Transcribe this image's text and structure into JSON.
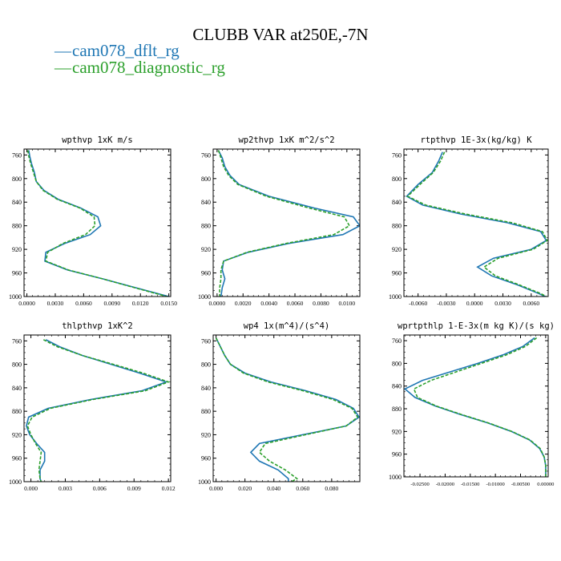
{
  "title": "CLUBB VAR at250E,-7N",
  "legend": {
    "placement": "top-left",
    "items": [
      {
        "marker": "—",
        "label": "cam078_dflt_rg",
        "color": "#1f77b4",
        "dash": "solid"
      },
      {
        "marker": "—",
        "label": "cam078_diagnostic_rg",
        "color": "#2ca02c",
        "dash": "dashed"
      }
    ]
  },
  "chart_data": [
    {
      "type": "line",
      "title": "wpthvp  1xK m/s",
      "xlim": [
        -0.0003,
        0.0152
      ],
      "ylim": [
        1000,
        750
      ],
      "y_inverted": true,
      "xticks": [
        "0.0000",
        "0.0030",
        "0.0060",
        "0.0090",
        "0.0120",
        "0.0150"
      ],
      "yticks": [
        "760",
        "800",
        "840",
        "880",
        "920",
        "960",
        "1000"
      ],
      "y": [
        752,
        762,
        775,
        790,
        805,
        820,
        835,
        850,
        865,
        880,
        895,
        910,
        925,
        940,
        955,
        970,
        985,
        1000
      ],
      "series": [
        {
          "name": "cam078_dflt_rg",
          "x": [
            0.0002,
            0.0003,
            0.0005,
            0.0008,
            0.001,
            0.0018,
            0.0033,
            0.0057,
            0.0075,
            0.0078,
            0.0067,
            0.004,
            0.002,
            0.0019,
            0.0043,
            0.008,
            0.0115,
            0.015
          ]
        },
        {
          "name": "cam078_diagnostic_rg",
          "x": [
            0.0001,
            0.0002,
            0.0004,
            0.0007,
            0.001,
            0.0017,
            0.0032,
            0.0056,
            0.0071,
            0.0072,
            0.0062,
            0.0038,
            0.0022,
            0.002,
            0.0044,
            0.008,
            0.0114,
            0.0148
          ]
        }
      ]
    },
    {
      "type": "line",
      "title": "wp2thvp  1xK m^2/s^2",
      "xlim": [
        -0.0003,
        0.011
      ],
      "ylim": [
        1000,
        750
      ],
      "y_inverted": true,
      "xticks": [
        "0.0000",
        "0.0020",
        "0.0040",
        "0.0060",
        "0.0080",
        "0.0100"
      ],
      "yticks": [
        "760",
        "800",
        "840",
        "880",
        "920",
        "960",
        "1000"
      ],
      "y": [
        752,
        765,
        780,
        795,
        810,
        830,
        850,
        865,
        880,
        895,
        910,
        925,
        940,
        955,
        970,
        985,
        1000
      ],
      "series": [
        {
          "name": "cam078_dflt_rg",
          "x": [
            0.0001,
            0.0004,
            0.0006,
            0.001,
            0.0017,
            0.004,
            0.0075,
            0.0105,
            0.011,
            0.0097,
            0.0055,
            0.0024,
            0.0005,
            0.0004,
            0.0006,
            0.0004,
            0.0003
          ]
        },
        {
          "name": "cam078_diagnostic_rg",
          "x": [
            0.0001,
            0.0003,
            0.0005,
            0.0009,
            0.0016,
            0.0038,
            0.0071,
            0.0098,
            0.0102,
            0.009,
            0.0053,
            0.0023,
            0.0005,
            0.0003,
            0.0003,
            0.0002,
            0.0002
          ]
        }
      ]
    },
    {
      "type": "line",
      "title": "rtpthvp  1E-3x(kg/kg) K",
      "xlim": [
        -0.0075,
        0.0078
      ],
      "ylim": [
        1000,
        750
      ],
      "y_inverted": true,
      "xticks": [
        "-0.0060",
        "-0.0030",
        "0.0000",
        "0.0030",
        "0.0060"
      ],
      "yticks": [
        "760",
        "800",
        "840",
        "880",
        "920",
        "960",
        "1000"
      ],
      "y": [
        755,
        770,
        790,
        810,
        830,
        845,
        860,
        875,
        890,
        905,
        920,
        935,
        950,
        965,
        980,
        995,
        1000
      ],
      "series": [
        {
          "name": "cam078_dflt_rg",
          "x": [
            -0.0034,
            -0.0038,
            -0.0045,
            -0.006,
            -0.0072,
            -0.0055,
            -0.0015,
            0.0035,
            0.007,
            0.0076,
            0.006,
            0.002,
            0.0003,
            0.0018,
            0.0045,
            0.0068,
            0.0075
          ]
        },
        {
          "name": "cam078_diagnostic_rg",
          "x": [
            -0.0032,
            -0.0036,
            -0.0044,
            -0.0058,
            -0.0071,
            -0.0052,
            -0.001,
            0.004,
            0.0072,
            0.0077,
            0.0062,
            0.0025,
            0.001,
            0.0022,
            0.0047,
            0.007,
            0.0076
          ]
        }
      ]
    },
    {
      "type": "line",
      "title": "thlpthvp  1xK^2",
      "xlim": [
        -0.0006,
        0.0122
      ],
      "ylim": [
        1000,
        750
      ],
      "y_inverted": true,
      "xticks": [
        "0.000",
        "0.003",
        "0.006",
        "0.009",
        "0.012"
      ],
      "yticks": [
        "760",
        "800",
        "840",
        "880",
        "920",
        "960",
        "1000"
      ],
      "y": [
        758,
        770,
        785,
        800,
        815,
        830,
        845,
        860,
        875,
        890,
        905,
        920,
        935,
        950,
        965,
        980,
        995,
        1000
      ],
      "series": [
        {
          "name": "cam078_dflt_rg",
          "x": [
            0.0013,
            0.0025,
            0.0045,
            0.007,
            0.0095,
            0.0118,
            0.0097,
            0.0052,
            0.0015,
            -0.0002,
            -0.0004,
            -0.0001,
            0.0005,
            0.0012,
            0.0012,
            0.0008,
            0.0008,
            0.0009
          ]
        },
        {
          "name": "cam078_diagnostic_rg",
          "x": [
            0.0011,
            0.0023,
            0.0045,
            0.0072,
            0.0098,
            0.012,
            0.01,
            0.0054,
            0.0017,
            0.0001,
            -0.0003,
            0.0,
            0.0004,
            0.0009,
            0.0008,
            0.0007,
            0.0008,
            0.0009
          ]
        }
      ]
    },
    {
      "type": "line",
      "title": "wp4  1x(m^4)/(s^4)",
      "xlim": [
        -0.002,
        0.0995
      ],
      "ylim": [
        1000,
        750
      ],
      "y_inverted": true,
      "xticks": [
        "0.000",
        "0.020",
        "0.040",
        "0.060",
        "0.080"
      ],
      "yticks": [
        "760",
        "800",
        "840",
        "880",
        "920",
        "960",
        "1000"
      ],
      "y": [
        755,
        770,
        785,
        800,
        815,
        830,
        845,
        860,
        875,
        890,
        905,
        920,
        935,
        950,
        965,
        980,
        995,
        1000
      ],
      "series": [
        {
          "name": "cam078_dflt_rg",
          "x": [
            0.0,
            0.003,
            0.006,
            0.01,
            0.02,
            0.038,
            0.062,
            0.083,
            0.095,
            0.099,
            0.09,
            0.06,
            0.03,
            0.024,
            0.03,
            0.043,
            0.05,
            0.05
          ]
        },
        {
          "name": "cam078_diagnostic_rg",
          "x": [
            0.0,
            0.003,
            0.006,
            0.01,
            0.019,
            0.036,
            0.06,
            0.081,
            0.094,
            0.098,
            0.09,
            0.062,
            0.034,
            0.03,
            0.037,
            0.048,
            0.056,
            0.052
          ]
        }
      ]
    },
    {
      "type": "line",
      "title": "wprtpthlp  1-E-3x(m kg K)/(s kg)",
      "xlim": [
        -0.0282,
        0.0005
      ],
      "ylim": [
        1000,
        750
      ],
      "y_inverted": true,
      "xticks": [
        "-0.02500",
        "-0.02000",
        "-0.01500",
        "-0.01000",
        "-0.00500",
        "0.00000"
      ],
      "yticks": [
        "760",
        "800",
        "840",
        "880",
        "920",
        "960",
        "1000"
      ],
      "y": [
        755,
        770,
        785,
        800,
        815,
        830,
        845,
        860,
        875,
        890,
        905,
        920,
        935,
        950,
        965,
        980,
        995,
        1000
      ],
      "series": [
        {
          "name": "cam078_dflt_rg",
          "x": [
            -0.0022,
            -0.0045,
            -0.0085,
            -0.0135,
            -0.019,
            -0.0245,
            -0.028,
            -0.026,
            -0.022,
            -0.017,
            -0.0115,
            -0.0068,
            -0.0032,
            -0.0012,
            -0.0003,
            0.0,
            0.0,
            0.0
          ]
        },
        {
          "name": "cam078_diagnostic_rg",
          "x": [
            -0.0018,
            -0.004,
            -0.0078,
            -0.0128,
            -0.0178,
            -0.0228,
            -0.0262,
            -0.0255,
            -0.0218,
            -0.0168,
            -0.0114,
            -0.0067,
            -0.0031,
            -0.0011,
            -0.0003,
            0.0,
            0.0,
            0.0
          ]
        }
      ]
    }
  ]
}
